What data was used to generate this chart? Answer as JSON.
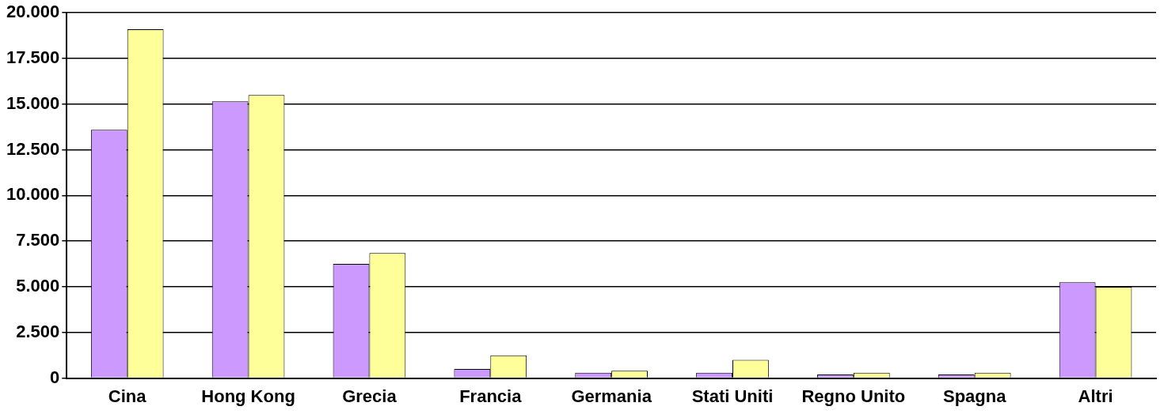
{
  "chart_data": {
    "type": "bar",
    "categories": [
      "Cina",
      "Hong Kong",
      "Grecia",
      "Francia",
      "Germania",
      "Stati Uniti",
      "Regno Unito",
      "Spagna",
      "Altri"
    ],
    "series": [
      {
        "color": "#cc99ff",
        "values": [
          13600,
          15150,
          6250,
          500,
          300,
          300,
          200,
          200,
          5250
        ]
      },
      {
        "color": "#ffff99",
        "values": [
          19100,
          15500,
          6850,
          1250,
          400,
          1000,
          300,
          300,
          5000
        ]
      }
    ],
    "ylim": [
      0,
      20000
    ],
    "yticks": [
      {
        "value": 0,
        "label": "0"
      },
      {
        "value": 2500,
        "label": "2.500"
      },
      {
        "value": 5000,
        "label": "5.000"
      },
      {
        "value": 7500,
        "label": "7.500"
      },
      {
        "value": 10000,
        "label": "10.000"
      },
      {
        "value": 12500,
        "label": "12.500"
      },
      {
        "value": 15000,
        "label": "15.000"
      },
      {
        "value": 17500,
        "label": "17.500"
      },
      {
        "value": 20000,
        "label": "20.000"
      }
    ],
    "grid": "y",
    "legend": false
  }
}
